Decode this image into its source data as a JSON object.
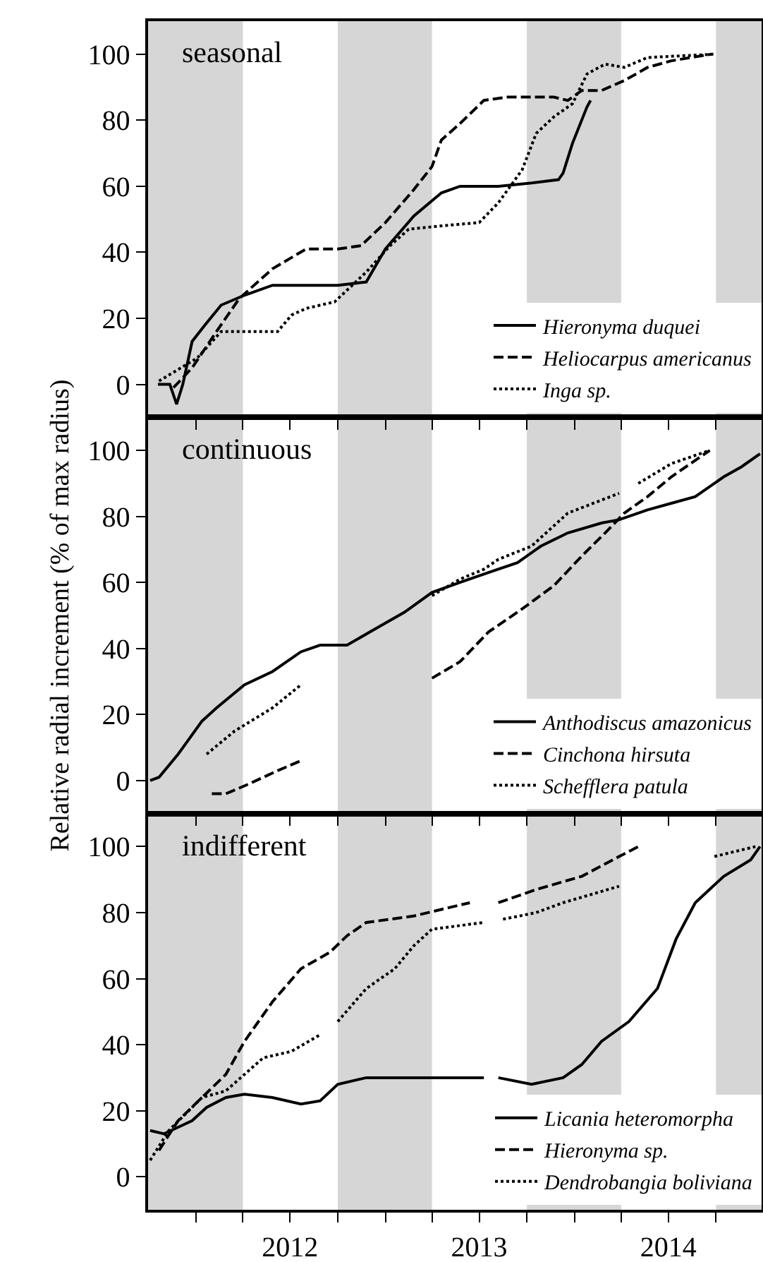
{
  "chart_data": [
    {
      "type": "line",
      "title": "seasonal",
      "xlim": [
        "2011-10-01",
        "2014-12-28"
      ],
      "ylim": [
        -10,
        110
      ],
      "yticks": [
        0,
        20,
        40,
        60,
        80,
        100
      ],
      "xticks": [
        {
          "value": "2012-01-01",
          "label": null
        },
        {
          "value": "2012-04-01",
          "label": null
        },
        {
          "value": "2012-07-01",
          "label": null
        },
        {
          "value": "2012-10-01",
          "label": null
        },
        {
          "value": "2013-01-01",
          "label": null
        },
        {
          "value": "2013-04-01",
          "label": null
        },
        {
          "value": "2013-07-01",
          "label": null
        },
        {
          "value": "2013-10-01",
          "label": null
        },
        {
          "value": "2014-01-01",
          "label": null
        },
        {
          "value": "2014-04-01",
          "label": null
        },
        {
          "value": "2014-07-01",
          "label": null
        },
        {
          "value": "2014-10-01",
          "label": null
        }
      ],
      "tick_labels": "y",
      "legend": "bottom right",
      "bands": [
        {
          "axis": "x",
          "from": "2011-10-01",
          "to": "2012-04-01",
          "color": "#d6d6d6"
        },
        {
          "axis": "x",
          "from": "2012-10-01",
          "to": "2013-04-01",
          "color": "#d6d6d6"
        },
        {
          "axis": "x",
          "from": "2013-10-01",
          "to": "2014-04-01",
          "color": "#d6d6d6"
        },
        {
          "axis": "x",
          "from": "2014-10-01",
          "to": "2014-12-28",
          "color": "#d6d6d6"
        }
      ],
      "series": [
        {
          "name": "Hieronyma duquei",
          "color": "#000000",
          "line_style": "solid",
          "x": [
            "2011-10-20",
            "2011-11-12",
            "2011-11-25",
            "2011-12-07",
            "2011-12-25",
            "2012-01-19",
            "2012-02-19",
            "2012-04-04",
            "2012-05-28",
            "2012-07-22",
            "2012-10-01",
            "2012-11-25",
            "2013-01-01",
            "2013-02-25",
            "2013-04-19",
            "2013-05-25",
            "2013-08-07",
            "2013-10-10",
            "2013-12-01",
            "2013-12-10",
            "2013-12-28",
            "2014-01-25",
            "2014-02-01"
          ],
          "values": [
            0,
            0,
            -6,
            0,
            13,
            18,
            24,
            27,
            30,
            30,
            30,
            31,
            41,
            51,
            58,
            60,
            60,
            61,
            62,
            64,
            73,
            84,
            86
          ]
        },
        {
          "name": "Heliocarpus americanus",
          "color": "#000000",
          "line_style": "dashed",
          "x": [
            "2011-11-19",
            "2011-12-25",
            "2012-02-10",
            "2012-03-25",
            "2012-05-28",
            "2012-08-01",
            "2012-10-01",
            "2012-11-15",
            "2013-01-01",
            "2013-02-25",
            "2013-04-01",
            "2013-04-19",
            "2013-05-25",
            "2013-07-10",
            "2013-08-25",
            "2013-10-10",
            "2013-11-22",
            "2013-12-19",
            "2014-01-15",
            "2014-02-22",
            "2014-04-07",
            "2014-05-22",
            "2014-07-07",
            "2014-09-22"
          ],
          "values": [
            -1,
            5,
            16,
            26,
            35,
            41,
            41,
            42,
            49,
            59,
            66,
            74,
            79,
            86,
            87,
            87,
            87,
            86,
            89,
            89,
            92,
            96,
            98,
            100
          ]
        },
        {
          "name": "Inga sp.",
          "color": "#000000",
          "line_style": "dotted",
          "x": [
            "2011-10-22",
            "2012-01-04",
            "2012-02-19",
            "2012-06-07",
            "2012-07-04",
            "2012-08-01",
            "2012-09-25",
            "2012-11-25",
            "2013-01-10",
            "2013-02-15",
            "2013-04-19",
            "2013-07-01",
            "2013-08-07",
            "2013-09-22",
            "2013-10-19",
            "2013-11-22",
            "2013-12-28",
            "2014-01-25",
            "2014-03-01",
            "2014-04-07",
            "2014-05-22",
            "2014-09-28"
          ],
          "values": [
            1,
            8,
            16,
            16,
            21,
            23,
            25,
            34,
            42,
            47,
            48,
            49,
            55,
            65,
            76,
            81,
            85,
            94,
            97,
            96,
            99,
            100
          ]
        }
      ]
    },
    {
      "type": "line",
      "title": "continuous",
      "ylabel": "Relative radial increment (% of max radius)",
      "xlim": [
        "2011-10-01",
        "2014-12-28"
      ],
      "ylim": [
        -10,
        110
      ],
      "yticks": [
        0,
        20,
        40,
        60,
        80,
        100
      ],
      "xticks": [
        {
          "value": "2012-01-01",
          "label": null
        },
        {
          "value": "2012-04-01",
          "label": null
        },
        {
          "value": "2012-07-01",
          "label": null
        },
        {
          "value": "2012-10-01",
          "label": null
        },
        {
          "value": "2013-01-01",
          "label": null
        },
        {
          "value": "2013-04-01",
          "label": null
        },
        {
          "value": "2013-07-01",
          "label": null
        },
        {
          "value": "2013-10-01",
          "label": null
        },
        {
          "value": "2014-01-01",
          "label": null
        },
        {
          "value": "2014-04-01",
          "label": null
        },
        {
          "value": "2014-07-01",
          "label": null
        },
        {
          "value": "2014-10-01",
          "label": null
        }
      ],
      "tick_labels": "y",
      "legend": "bottom right",
      "bands": [
        {
          "axis": "x",
          "from": "2011-10-01",
          "to": "2012-04-01",
          "color": "#d6d6d6"
        },
        {
          "axis": "x",
          "from": "2012-10-01",
          "to": "2013-04-01",
          "color": "#d6d6d6"
        },
        {
          "axis": "x",
          "from": "2013-10-01",
          "to": "2014-04-01",
          "color": "#d6d6d6"
        },
        {
          "axis": "x",
          "from": "2014-10-01",
          "to": "2014-12-28",
          "color": "#d6d6d6"
        }
      ],
      "series": [
        {
          "name": "Anthodiscus amazonicus",
          "color": "#000000",
          "line_style": "solid",
          "x": [
            "2011-10-05",
            "2011-10-22",
            "2011-11-28",
            "2012-01-13",
            "2012-02-10",
            "2012-04-04",
            "2012-05-28",
            "2012-07-22",
            "2012-08-28",
            "2012-10-19",
            "2012-12-13",
            "2013-02-07",
            "2013-04-01",
            "2013-05-25",
            "2013-07-19",
            "2013-09-13",
            "2013-10-28",
            "2013-12-19",
            "2014-02-22",
            "2014-03-28",
            "2014-05-22",
            "2014-07-07",
            "2014-08-22",
            "2014-10-16",
            "2014-11-19",
            "2014-12-25"
          ],
          "values": [
            0,
            1,
            8,
            18,
            22,
            29,
            33,
            39,
            41,
            41,
            46,
            51,
            57,
            60,
            63,
            66,
            71,
            75,
            78,
            79,
            82,
            84,
            86,
            92,
            95,
            99
          ]
        },
        {
          "name": "Cinchona hirsuta",
          "color": "#000000",
          "line_style": "dashed",
          "x": [
            "2012-02-01",
            "2012-02-28",
            "2012-04-13",
            "2012-06-07",
            "2012-07-22",
            "2012-10-01",
            "2013-04-01",
            "2013-05-25",
            "2013-07-19",
            "2013-09-22",
            "2013-11-22",
            "2014-01-15",
            "2014-03-01",
            "2014-04-07",
            "2014-05-22",
            "2014-07-07",
            "2014-09-19"
          ],
          "values": [
            -4,
            -4,
            -1,
            3,
            6,
            null,
            31,
            36,
            45,
            52,
            59,
            68,
            75,
            81,
            86,
            92,
            100
          ]
        },
        {
          "name": "Schefflera patula",
          "color": "#000000",
          "line_style": "dotted",
          "x": [
            "2012-01-22",
            "2012-03-16",
            "2012-05-28",
            "2012-07-22",
            "2012-10-01",
            "2013-04-01",
            "2013-05-25",
            "2013-07-10",
            "2013-08-07",
            "2013-10-10",
            "2013-12-19",
            "2014-03-28",
            "2014-04-10",
            "2014-05-04",
            "2014-07-07",
            "2014-09-19"
          ],
          "values": [
            8,
            15,
            22,
            29,
            null,
            56,
            61,
            64,
            67,
            71,
            81,
            87,
            null,
            90,
            96,
            100
          ]
        }
      ]
    },
    {
      "type": "line",
      "title": "indifferent",
      "xlim": [
        "2011-10-01",
        "2014-12-28"
      ],
      "ylim": [
        -10,
        110
      ],
      "yticks": [
        0,
        20,
        40,
        60,
        80,
        100
      ],
      "xticks": [
        {
          "value": "2012-01-01",
          "label": null
        },
        {
          "value": "2012-04-01",
          "label": null
        },
        {
          "value": "2012-07-01",
          "label": "2012"
        },
        {
          "value": "2012-10-01",
          "label": null
        },
        {
          "value": "2013-01-01",
          "label": null
        },
        {
          "value": "2013-04-01",
          "label": null
        },
        {
          "value": "2013-07-01",
          "label": "2013"
        },
        {
          "value": "2013-10-01",
          "label": null
        },
        {
          "value": "2014-01-01",
          "label": null
        },
        {
          "value": "2014-04-01",
          "label": null
        },
        {
          "value": "2014-07-01",
          "label": "2014"
        },
        {
          "value": "2014-10-01",
          "label": null
        }
      ],
      "legend": "bottom right",
      "bands": [
        {
          "axis": "x",
          "from": "2011-10-01",
          "to": "2012-04-01",
          "color": "#d6d6d6"
        },
        {
          "axis": "x",
          "from": "2012-10-01",
          "to": "2013-04-01",
          "color": "#d6d6d6"
        },
        {
          "axis": "x",
          "from": "2013-10-01",
          "to": "2014-04-01",
          "color": "#d6d6d6"
        },
        {
          "axis": "x",
          "from": "2014-10-01",
          "to": "2014-12-28",
          "color": "#d6d6d6"
        }
      ],
      "series": [
        {
          "name": "Licania heteromorpha",
          "color": "#000000",
          "line_style": "solid",
          "x": [
            "2011-10-05",
            "2011-11-01",
            "2011-11-28",
            "2011-12-25",
            "2012-01-22",
            "2012-02-28",
            "2012-04-04",
            "2012-05-28",
            "2012-07-22",
            "2012-08-28",
            "2012-10-01",
            "2012-11-25",
            "2013-02-25",
            "2013-05-25",
            "2013-07-10",
            "2013-07-20",
            "2013-08-07",
            "2013-10-10",
            "2013-12-10",
            "2014-01-15",
            "2014-02-22",
            "2014-04-16",
            "2014-06-10",
            "2014-07-16",
            "2014-08-22",
            "2014-10-16",
            "2014-12-07",
            "2014-12-25"
          ],
          "values": [
            14,
            13,
            15,
            17,
            21,
            24,
            25,
            24,
            22,
            23,
            28,
            30,
            30,
            30,
            30,
            null,
            30,
            28,
            30,
            34,
            41,
            47,
            57,
            72,
            83,
            91,
            96,
            100
          ]
        },
        {
          "name": "Hieronyma sp.",
          "color": "#000000",
          "line_style": "dashed",
          "x": [
            "2011-10-22",
            "2011-11-28",
            "2012-01-13",
            "2012-02-28",
            "2012-04-04",
            "2012-05-28",
            "2012-07-22",
            "2012-09-16",
            "2012-10-19",
            "2012-11-25",
            "2013-02-25",
            "2013-06-13",
            "2013-07-15",
            "2013-08-07",
            "2013-10-19",
            "2014-01-15",
            "2014-03-28",
            "2014-05-04"
          ],
          "values": [
            8,
            17,
            24,
            31,
            41,
            53,
            63,
            68,
            73,
            77,
            79,
            83,
            null,
            83,
            87,
            91,
            97,
            100
          ]
        },
        {
          "name": "Dendrobangia boliviana",
          "color": "#000000",
          "line_style": "dotted",
          "x": [
            "2011-10-05",
            "2011-11-10",
            "2012-01-13",
            "2012-02-28",
            "2012-05-10",
            "2012-07-04",
            "2012-08-28",
            "2012-09-10",
            "2012-10-01",
            "2012-11-25",
            "2013-01-19",
            "2013-02-25",
            "2013-04-01",
            "2013-07-10",
            "2013-07-20",
            "2013-08-16",
            "2013-10-19",
            "2013-12-10",
            "2014-03-28",
            "2014-06-01",
            "2014-09-28",
            "2014-12-16"
          ],
          "values": [
            5,
            14,
            24,
            26,
            36,
            38,
            43,
            null,
            47,
            57,
            63,
            70,
            75,
            77,
            null,
            78,
            80,
            83,
            88,
            null,
            97,
            100
          ]
        }
      ]
    }
  ]
}
